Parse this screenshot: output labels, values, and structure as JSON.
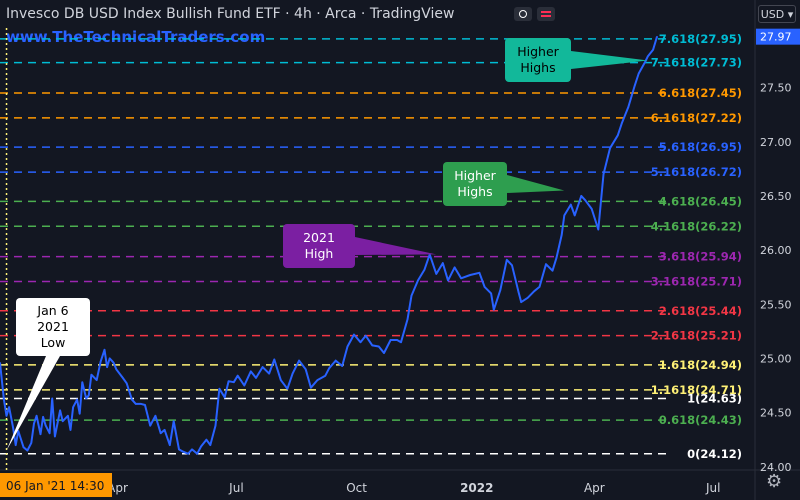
{
  "header": {
    "title": "Invesco DB USD Index Bullish Fund ETF · 4h · Arca · TradingView",
    "watermark": "www.TheTechnicalTraders.com",
    "currency": "USD",
    "currency_caret": "▾",
    "icons": [
      "eye-icon",
      "flag-icon",
      "gear-icon"
    ]
  },
  "chart_data": {
    "type": "line",
    "y_range": [
      23.97,
      28.05
    ],
    "y_ticks": [
      24.0,
      24.5,
      25.0,
      25.5,
      26.0,
      26.5,
      27.0,
      27.5
    ],
    "y_tick_labels": [
      "24.00",
      "24.50",
      "25.00",
      "25.50",
      "26.00",
      "26.50",
      "27.00",
      "27.50"
    ],
    "x_labels": [
      "Apr",
      "Jul",
      "Oct",
      "2022",
      "Apr",
      "Jul"
    ],
    "cursor_date": "06 Jan '21  14:30",
    "current_price": "27.97",
    "line_color": "#2962ff",
    "series": [
      {
        "x": [
          "2021-01-01",
          "2021-01-04",
          "2021-01-06",
          "2021-01-08",
          "2021-01-11",
          "2021-01-13",
          "2021-01-15",
          "2021-01-19",
          "2021-01-22",
          "2021-01-25",
          "2021-01-27",
          "2021-01-29",
          "2021-02-01",
          "2021-02-03",
          "2021-02-05",
          "2021-02-08",
          "2021-02-10",
          "2021-02-12",
          "2021-02-16",
          "2021-02-18",
          "2021-02-22",
          "2021-02-24",
          "2021-02-26",
          "2021-03-01",
          "2021-03-03",
          "2021-03-05",
          "2021-03-08",
          "2021-03-10",
          "2021-03-12",
          "2021-03-16",
          "2021-03-19",
          "2021-03-22",
          "2021-03-24",
          "2021-03-26",
          "2021-03-29",
          "2021-03-31",
          "2021-04-05",
          "2021-04-08",
          "2021-04-12",
          "2021-04-15",
          "2021-04-19",
          "2021-04-22",
          "2021-04-26",
          "2021-04-30",
          "2021-05-04",
          "2021-05-07",
          "2021-05-11",
          "2021-05-14",
          "2021-05-18",
          "2021-05-21",
          "2021-05-25",
          "2021-05-28",
          "2021-06-01",
          "2021-06-04",
          "2021-06-08",
          "2021-06-11",
          "2021-06-15",
          "2021-06-18",
          "2021-06-22",
          "2021-06-25",
          "2021-06-29",
          "2021-07-02",
          "2021-07-07",
          "2021-07-12",
          "2021-07-16",
          "2021-07-21",
          "2021-07-26",
          "2021-07-30",
          "2021-08-04",
          "2021-08-09",
          "2021-08-13",
          "2021-08-18",
          "2021-08-23",
          "2021-08-27",
          "2021-09-01",
          "2021-09-07",
          "2021-09-10",
          "2021-09-15",
          "2021-09-20",
          "2021-09-24",
          "2021-09-29",
          "2021-10-04",
          "2021-10-08",
          "2021-10-13",
          "2021-10-18",
          "2021-10-22",
          "2021-10-27",
          "2021-11-01",
          "2021-11-04",
          "2021-11-09",
          "2021-11-12",
          "2021-11-17",
          "2021-11-22",
          "2021-11-26",
          "2021-12-01",
          "2021-12-06",
          "2021-12-10",
          "2021-12-15",
          "2021-12-20",
          "2021-12-27",
          "2022-01-03",
          "2022-01-07",
          "2022-01-12",
          "2022-01-14",
          "2022-01-19",
          "2022-01-24",
          "2022-01-28",
          "2022-02-02",
          "2022-02-04",
          "2022-02-09",
          "2022-02-14",
          "2022-02-18",
          "2022-02-23",
          "2022-02-28",
          "2022-03-03",
          "2022-03-07",
          "2022-03-09",
          "2022-03-14",
          "2022-03-17",
          "2022-03-22",
          "2022-03-25",
          "2022-03-30",
          "2022-04-04",
          "2022-04-08",
          "2022-04-13",
          "2022-04-19",
          "2022-04-22",
          "2022-04-27",
          "2022-05-02",
          "2022-05-05",
          "2022-05-10",
          "2022-05-12",
          "2022-05-16",
          "2022-05-19"
        ],
        "values": [
          24.96,
          24.62,
          24.47,
          24.55,
          24.36,
          24.2,
          24.33,
          24.18,
          24.15,
          24.22,
          24.4,
          24.47,
          24.3,
          24.46,
          24.38,
          24.31,
          24.63,
          24.28,
          24.52,
          24.42,
          24.47,
          24.34,
          24.55,
          24.62,
          24.49,
          24.78,
          24.63,
          24.66,
          24.85,
          24.8,
          24.97,
          25.08,
          24.92,
          25.0,
          24.96,
          24.9,
          24.82,
          24.77,
          24.62,
          24.58,
          24.58,
          24.57,
          24.38,
          24.47,
          24.31,
          24.34,
          24.2,
          24.42,
          24.16,
          24.14,
          24.12,
          24.16,
          24.12,
          24.19,
          24.25,
          24.2,
          24.38,
          24.72,
          24.64,
          24.79,
          24.78,
          24.84,
          24.75,
          24.88,
          24.82,
          24.92,
          24.86,
          24.99,
          24.8,
          24.72,
          24.86,
          24.98,
          24.9,
          24.73,
          24.8,
          24.84,
          24.91,
          24.98,
          24.93,
          25.11,
          25.22,
          25.15,
          25.21,
          25.12,
          25.11,
          25.05,
          25.17,
          25.17,
          25.15,
          25.36,
          25.58,
          25.72,
          25.82,
          25.96,
          25.78,
          25.88,
          25.72,
          25.84,
          25.74,
          25.77,
          25.79,
          25.66,
          25.6,
          25.45,
          25.63,
          25.91,
          25.86,
          25.61,
          25.52,
          25.56,
          25.62,
          25.66,
          25.87,
          25.81,
          25.93,
          26.14,
          26.32,
          26.42,
          26.32,
          26.5,
          26.46,
          26.38,
          26.19,
          26.7,
          26.94,
          27.06,
          27.17,
          27.32,
          27.52,
          27.63,
          27.74,
          27.79,
          27.85,
          27.97
        ]
      }
    ],
    "fib_levels": [
      {
        "label": "0(24.12)",
        "value": 24.12,
        "color": "#ffffff"
      },
      {
        "label": "0.618(24.43)",
        "value": 24.43,
        "color": "#4caf50"
      },
      {
        "label": "1(24.63)",
        "value": 24.63,
        "color": "#ffffff"
      },
      {
        "label": "1.1618(24.71)",
        "value": 24.71,
        "color": "#fff176"
      },
      {
        "label": "1.618(24.94)",
        "value": 24.94,
        "color": "#fff176"
      },
      {
        "label": "2.1618(25.21)",
        "value": 25.21,
        "color": "#f23645"
      },
      {
        "label": "2.618(25.44)",
        "value": 25.44,
        "color": "#f23645"
      },
      {
        "label": "3.1618(25.71)",
        "value": 25.71,
        "color": "#9c27b0"
      },
      {
        "label": "3.618(25.94)",
        "value": 25.94,
        "color": "#9c27b0"
      },
      {
        "label": "4.1618(26.22)",
        "value": 26.22,
        "color": "#4caf50"
      },
      {
        "label": "4.618(26.45)",
        "value": 26.45,
        "color": "#4caf50"
      },
      {
        "label": "5.1618(26.72)",
        "value": 26.72,
        "color": "#2962ff"
      },
      {
        "label": "5.618(26.95)",
        "value": 26.95,
        "color": "#2962ff"
      },
      {
        "label": "6.1618(27.22)",
        "value": 27.22,
        "color": "#ff9800"
      },
      {
        "label": "6.618(27.45)",
        "value": 27.45,
        "color": "#ff9800"
      },
      {
        "label": "7.1618(27.73)",
        "value": 27.73,
        "color": "#00bcd4"
      },
      {
        "label": "7.618(27.95)",
        "value": 27.95,
        "color": "#00bcd4"
      }
    ],
    "annotations": [
      {
        "lines": [
          "Jan 6",
          "2021",
          "Low"
        ],
        "x": "2021-01-06",
        "y": 24.15,
        "bg": "#ffffff",
        "fg": "#000000"
      },
      {
        "lines": [
          "2021",
          "High"
        ],
        "x": "2021-12-01",
        "y": 25.96,
        "bg": "#7b1fa2",
        "fg": "#ffffff"
      },
      {
        "lines": [
          "Higher",
          "Highs"
        ],
        "x": "2022-03-09",
        "y": 26.55,
        "bg": "#2e9e4f",
        "fg": "#ffffff"
      },
      {
        "lines": [
          "Higher",
          "Highs"
        ],
        "x": "2022-05-12",
        "y": 27.75,
        "bg": "#12b89a",
        "fg": "#000000"
      }
    ],
    "colors": {
      "background": "#131722",
      "axis_text": "#d1d4dc",
      "cursor_line": "#fff176",
      "cursor_label_bg": "#ff9800",
      "price_label_bg": "#2962ff"
    }
  }
}
